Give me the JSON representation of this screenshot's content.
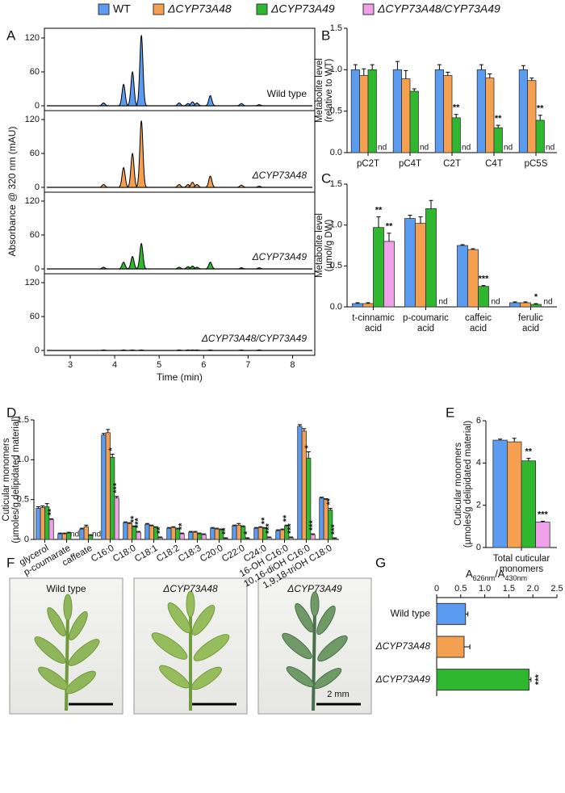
{
  "chart_data": [
    {
      "type": "chromatogram",
      "panel": "A",
      "xlabel": "Time (min)",
      "ylabel": "Absorbance @ 320 nm (mAU)",
      "xlim": [
        3,
        8.5
      ],
      "xticks": [
        3,
        4,
        5,
        6,
        7,
        8
      ],
      "ylim": [
        0,
        120
      ],
      "yticks": [
        0,
        60,
        120
      ],
      "x": [
        3.75,
        4.2,
        4.4,
        4.6,
        5.45,
        5.65,
        5.75,
        5.85,
        6.15,
        6.85,
        7.25
      ],
      "series": [
        {
          "name": "Wild type",
          "color": "#5b9bf0",
          "values": [
            5,
            38,
            60,
            125,
            5,
            4,
            7,
            5,
            18,
            4,
            2
          ]
        },
        {
          "name": "ΔCYP73A48",
          "color": "#f5a050",
          "values": [
            5,
            35,
            60,
            118,
            5,
            5,
            9,
            5,
            20,
            4,
            2
          ]
        },
        {
          "name": "ΔCYP73A49",
          "color": "#2fb82f",
          "values": [
            3,
            12,
            22,
            45,
            3,
            4,
            5,
            3,
            12,
            2,
            2
          ]
        },
        {
          "name": "ΔCYP73A48/CYP73A49",
          "color": "#f0a0e8",
          "values": [
            1,
            1,
            1,
            1,
            1,
            1,
            1,
            1,
            1,
            1,
            1
          ]
        }
      ]
    },
    {
      "type": "bar",
      "panel": "B",
      "ylabel": [
        "Metabolite level",
        "(relative to WT)"
      ],
      "categories": [
        [
          "pC2T"
        ],
        [
          "pC4T"
        ],
        [
          "C2T"
        ],
        [
          "C4T"
        ],
        [
          "pC5S"
        ]
      ],
      "ylim": [
        0,
        1.5
      ],
      "yticks": [
        {
          "value": 0,
          "label": "0.0"
        },
        0.5,
        {
          "value": 1,
          "label": "1.0"
        },
        1.5
      ],
      "series": [
        {
          "name": "WT",
          "color": "#5b9bf0",
          "values": [
            1,
            1,
            1,
            1,
            1
          ],
          "errors": [
            0.06,
            0.1,
            0.06,
            0.06,
            0.05
          ]
        },
        {
          "name": "ΔCYP73A48",
          "color": "#f5a050",
          "values": [
            0.93,
            0.89,
            0.93,
            0.9,
            0.87
          ],
          "errors": [
            0.08,
            0.1,
            0.04,
            0.05,
            0.03
          ]
        },
        {
          "name": "ΔCYP73A49",
          "color": "#2fb82f",
          "values": [
            1,
            0.74,
            0.42,
            0.3,
            0.39
          ],
          "errors": [
            0.06,
            0.03,
            0.04,
            0.03,
            0.06
          ],
          "significance": [
            null,
            null,
            "**",
            "**",
            "**"
          ]
        },
        {
          "name": "ΔCYP73A48/CYP73A49",
          "color": "#f0a0e8",
          "values": [
            null,
            null,
            null,
            null,
            null
          ],
          "value_labels": [
            "nd",
            "nd",
            "nd",
            "nd",
            "nd"
          ]
        }
      ]
    },
    {
      "type": "bar",
      "panel": "C",
      "ylabel": [
        "Metabolite level",
        "(µmol/g DW)"
      ],
      "categories": [
        [
          "t-cinnamic",
          "acid"
        ],
        [
          "p-coumaric",
          "acid"
        ],
        [
          "caffeic",
          "acid"
        ],
        [
          "ferulic",
          "acid"
        ]
      ],
      "ylim": [
        0,
        1.5
      ],
      "yticks": [
        {
          "value": 0,
          "label": "0.0"
        },
        0.5,
        {
          "value": 1,
          "label": "1.0"
        },
        1.5
      ],
      "series": [
        {
          "name": "WT",
          "color": "#5b9bf0",
          "values": [
            0.04,
            1.08,
            0.75,
            0.05
          ],
          "errors": [
            0.01,
            0.04,
            0.01,
            0.01
          ]
        },
        {
          "name": "ΔCYP73A48",
          "color": "#f5a050",
          "values": [
            0.04,
            1.02,
            0.7,
            0.05
          ],
          "errors": [
            0.01,
            0.08,
            0.01,
            0.01
          ]
        },
        {
          "name": "ΔCYP73A49",
          "color": "#2fb82f",
          "values": [
            0.97,
            1.2,
            0.25,
            0.03
          ],
          "errors": [
            0.13,
            0.1,
            0.01,
            0.01
          ],
          "significance": [
            "**",
            null,
            "***",
            "*"
          ]
        },
        {
          "name": "ΔCYP73A48/CYP73A49",
          "color": "#f0a0e8",
          "values": [
            0.8,
            null,
            null,
            null
          ],
          "errors": [
            0.1,
            null,
            null,
            null
          ],
          "value_labels": [
            null,
            "nd",
            "nd",
            "nd"
          ],
          "significance": [
            "**",
            null,
            null,
            null
          ]
        }
      ]
    },
    {
      "type": "bar",
      "panel": "D",
      "ylabel": [
        "Cuticular monomers",
        "(µmoles/g delipidated material)"
      ],
      "categories": [
        "glycerol",
        "p-coumarate",
        "caffeate",
        "C16:0",
        "C18:0",
        "C18:1",
        "C18:2",
        "C18:3",
        "C20:0",
        "C22:0",
        "C24:0",
        "16-OH C16:0",
        "10,16-diOH C16:0",
        "1,9,18-triOH C18:0"
      ],
      "ylim": [
        0,
        1.5
      ],
      "yticks": [
        0,
        0.5,
        {
          "value": 1,
          "label": "1.0"
        },
        1.5
      ],
      "series": [
        {
          "name": "WT",
          "color": "#5b9bf0",
          "values": [
            0.39,
            0.07,
            0.13,
            1.31,
            0.21,
            0.19,
            0.14,
            0.09,
            0.14,
            0.17,
            0.14,
            0.11,
            1.42,
            0.52
          ],
          "errors": [
            0.02,
            0.01,
            0.01,
            0.02,
            0.01,
            0.01,
            0.01,
            0.01,
            0.01,
            0.01,
            0.01,
            0.01,
            0.02,
            0.01
          ]
        },
        {
          "name": "ΔCYP73A48",
          "color": "#f5a050",
          "values": [
            0.4,
            0.07,
            0.16,
            1.34,
            0.2,
            0.17,
            0.15,
            0.09,
            0.13,
            0.18,
            0.15,
            0.12,
            1.36,
            0.5
          ],
          "errors": [
            0.02,
            0.01,
            0.02,
            0.04,
            0.01,
            0.01,
            0.01,
            0.01,
            0.01,
            0.02,
            0.01,
            0.01,
            0.03,
            0.01
          ]
        },
        {
          "name": "ΔCYP73A49",
          "color": "#2fb82f",
          "values": [
            0.41,
            0.08,
            0.05,
            1.03,
            0.16,
            0.15,
            0.13,
            0.07,
            0.12,
            0.16,
            0.14,
            0.17,
            1.02,
            0.37
          ],
          "errors": [
            0.04,
            0.01,
            0.01,
            0.04,
            0.01,
            0.01,
            0.01,
            0.01,
            0.01,
            0.01,
            0.01,
            0.01,
            0.08,
            0.02
          ],
          "significance": [
            null,
            null,
            null,
            "*",
            "**",
            null,
            null,
            null,
            null,
            null,
            "**",
            "**",
            "*",
            "**"
          ]
        },
        {
          "name": "ΔCYP73A48/CYP73A49",
          "color": "#f0a0e8",
          "values": [
            0.25,
            null,
            null,
            0.52,
            0.09,
            0.02,
            0.07,
            0.06,
            0.01,
            0.01,
            0.02,
            0.02,
            0.06,
            0.01
          ],
          "errors": [
            0.01,
            null,
            null,
            0.02,
            0.01,
            0.01,
            0.01,
            0.01,
            0.01,
            0.01,
            0.01,
            0.01,
            0.01,
            0.01
          ],
          "value_labels": [
            null,
            "nd",
            "nd",
            null,
            null,
            null,
            null,
            null,
            null,
            null,
            null,
            null,
            null,
            null
          ],
          "significance": [
            "**",
            null,
            null,
            "***",
            "***",
            "**",
            "**",
            null,
            "**",
            "*",
            "***",
            "***",
            "***",
            "***"
          ]
        }
      ]
    },
    {
      "type": "bar",
      "panel": "E",
      "ylabel": [
        "Cuticular monomers",
        "(µmoles/g delipidated material)"
      ],
      "categories": [
        [
          "Total cuticular",
          "monomers"
        ]
      ],
      "ylim": [
        0,
        6
      ],
      "yticks": [
        0,
        2,
        4,
        6
      ],
      "series": [
        {
          "name": "WT",
          "color": "#5b9bf0",
          "values": [
            5.08
          ],
          "errors": [
            0.05
          ]
        },
        {
          "name": "ΔCYP73A48",
          "color": "#f5a050",
          "values": [
            5.0
          ],
          "errors": [
            0.17
          ]
        },
        {
          "name": "ΔCYP73A49",
          "color": "#2fb82f",
          "values": [
            4.1
          ],
          "errors": [
            0.12
          ],
          "significance": [
            "**"
          ]
        },
        {
          "name": "ΔCYP73A48/CYP73A49",
          "color": "#f0a0e8",
          "values": [
            1.2
          ],
          "errors": [
            0.04
          ],
          "significance": [
            "***"
          ]
        }
      ]
    },
    {
      "type": "barh",
      "panel": "G",
      "xlabel": [
        "A",
        "626nm",
        "/A",
        "430nm"
      ],
      "categories": [
        "Wild type",
        "ΔCYP73A48",
        "ΔCYP73A49"
      ],
      "values": [
        0.6,
        0.57,
        1.92
      ],
      "errors": [
        0.05,
        0.12,
        0.04
      ],
      "colors": [
        "#5b9bf0",
        "#f5a050",
        "#2fb82f"
      ],
      "significance": [
        null,
        null,
        "***"
      ],
      "xlim": [
        0,
        2.5
      ],
      "xticks": [
        0,
        0.5,
        {
          "value": 1,
          "label": "1.0"
        },
        1.5,
        {
          "value": 2,
          "label": "2.0"
        },
        2.5
      ]
    }
  ],
  "images": {
    "panel": "F",
    "labels": [
      "Wild type",
      "ΔCYP73A48",
      "ΔCYP73A49"
    ],
    "scale_bar": "2 mm"
  }
}
